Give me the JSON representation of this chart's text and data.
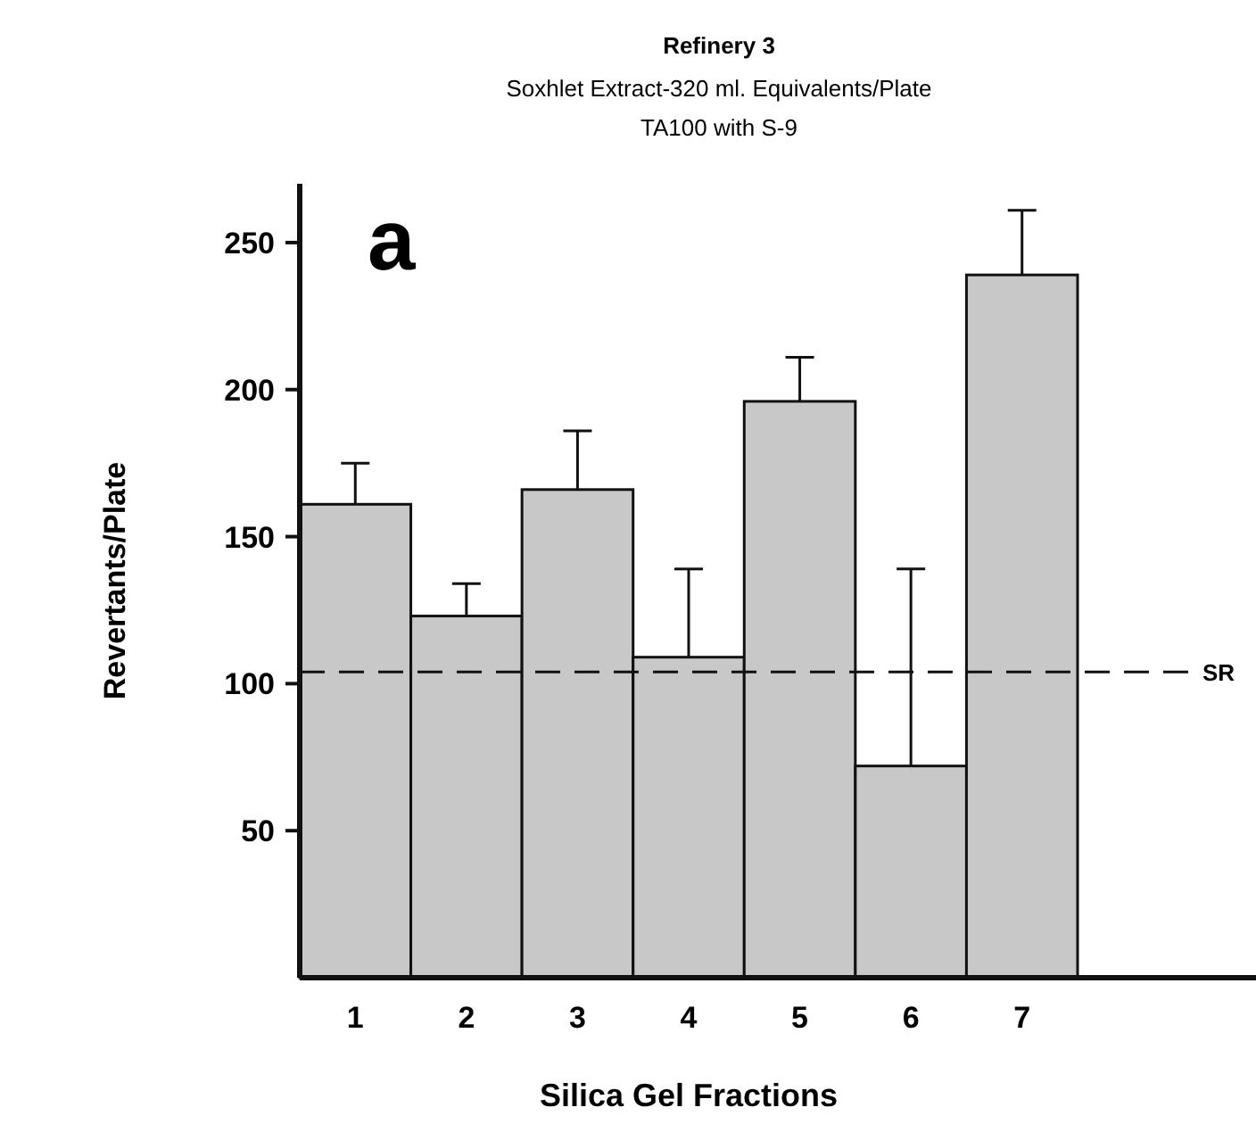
{
  "chart_data": {
    "type": "bar",
    "title": "Refinery 3",
    "subtitle": "Soxhlet Extract-320 ml. Equivalents/Plate\nTA100 with S-9",
    "xlabel": "Silica Gel Fractions",
    "ylabel": "Revertants/Plate",
    "categories": [
      "1",
      "2",
      "3",
      "4",
      "5",
      "6",
      "7"
    ],
    "values": [
      161,
      123,
      166,
      109,
      196,
      72,
      239
    ],
    "errors": [
      [
        161,
        175
      ],
      [
        123,
        134
      ],
      [
        166,
        186
      ],
      [
        109,
        139
      ],
      [
        196,
        211
      ],
      [
        72,
        139
      ],
      [
        239,
        261
      ]
    ],
    "color": "#c8c8c8",
    "ylim": [
      0,
      270
    ],
    "yticks": [
      50,
      100,
      150,
      200,
      250
    ],
    "grid": false,
    "ref_lines": [
      {
        "axis": "y",
        "value": 104,
        "label": "SR",
        "line_style": "dashed"
      }
    ],
    "annotations": [
      "a"
    ]
  }
}
